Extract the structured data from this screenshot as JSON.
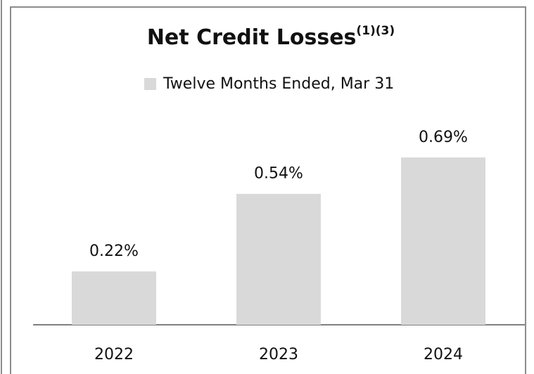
{
  "chart_data": {
    "type": "bar",
    "title": "Net Credit Losses",
    "title_note": "(1)(3)",
    "categories": [
      "2022",
      "2023",
      "2024"
    ],
    "series": [
      {
        "name": "Twelve Months Ended, Mar 31",
        "color": "#d9d9d9",
        "values": [
          0.22,
          0.54,
          0.69
        ],
        "value_labels": [
          "0.22%",
          "0.54%",
          "0.69%"
        ]
      }
    ]
  }
}
